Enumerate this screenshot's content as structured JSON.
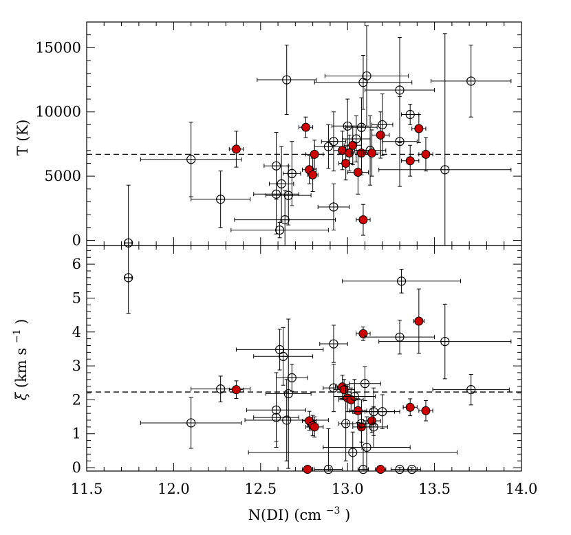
{
  "chart_data": {
    "type": "scatter",
    "x": {
      "label_main": "N(DI)",
      "label_units": "(cm",
      "label_exp": "−3",
      "label_close": ")",
      "range": [
        11.5,
        14.0
      ],
      "ticks": [
        "11.5",
        "12.0",
        "12.5",
        "13.0",
        "13.5",
        "14.0"
      ],
      "tick_values": [
        11.5,
        12.0,
        12.5,
        13.0,
        13.5,
        14.0
      ]
    },
    "panels": [
      {
        "id": "top",
        "ylabel": "T (K)",
        "ylim": [
          -400,
          17000
        ],
        "yticks": [
          "0",
          "5000",
          "10000",
          "15000"
        ],
        "ytick_values": [
          0,
          5000,
          10000,
          15000
        ],
        "reference_line": 6700,
        "points": [
          {
            "x": 11.74,
            "y": -200,
            "xerr": 0.02,
            "yerr": 4500,
            "filled": false
          },
          {
            "x": 12.1,
            "y": 6300,
            "xerr": 0.29,
            "yerr": 2900,
            "filled": false
          },
          {
            "x": 12.27,
            "y": 3200,
            "xerr": 0.17,
            "yerr": 2200,
            "filled": false
          },
          {
            "x": 12.36,
            "y": 7100,
            "xerr": 0.04,
            "yerr": 1400,
            "filled": true
          },
          {
            "x": 12.59,
            "y": 5800,
            "xerr": 0.07,
            "yerr": 2600,
            "filled": false
          },
          {
            "x": 12.59,
            "y": 3600,
            "xerr": 0.13,
            "yerr": 3100,
            "filled": false
          },
          {
            "x": 12.61,
            "y": 800,
            "xerr": 0.28,
            "yerr": 600,
            "filled": false
          },
          {
            "x": 12.62,
            "y": 4400,
            "xerr": 0.07,
            "yerr": 2900,
            "filled": false
          },
          {
            "x": 12.64,
            "y": 1600,
            "xerr": 0.29,
            "yerr": 2300,
            "filled": false
          },
          {
            "x": 12.65,
            "y": 12500,
            "xerr": 0.17,
            "yerr": 2700,
            "filled": false
          },
          {
            "x": 12.66,
            "y": 3500,
            "xerr": 0.13,
            "yerr": 2300,
            "filled": false
          },
          {
            "x": 12.68,
            "y": 5200,
            "xerr": 0.05,
            "yerr": 2500,
            "filled": false
          },
          {
            "x": 12.76,
            "y": 8800,
            "xerr": 0.04,
            "yerr": 800,
            "filled": true
          },
          {
            "x": 12.78,
            "y": 5500,
            "xerr": 0.04,
            "yerr": 1100,
            "filled": true
          },
          {
            "x": 12.8,
            "y": 5100,
            "xerr": 0.03,
            "yerr": 1300,
            "filled": true
          },
          {
            "x": 12.81,
            "y": 6700,
            "xerr": 0.05,
            "yerr": 1100,
            "filled": true
          },
          {
            "x": 12.89,
            "y": 7300,
            "xerr": 0.08,
            "yerr": 1700,
            "filled": false
          },
          {
            "x": 12.92,
            "y": 2600,
            "xerr": 0.09,
            "yerr": 1800,
            "filled": false
          },
          {
            "x": 12.92,
            "y": 7700,
            "xerr": 0.07,
            "yerr": 2300,
            "filled": false
          },
          {
            "x": 12.97,
            "y": 7000,
            "xerr": 0.05,
            "yerr": 1500,
            "filled": true
          },
          {
            "x": 12.99,
            "y": 6000,
            "xerr": 0.04,
            "yerr": 1300,
            "filled": true
          },
          {
            "x": 13.0,
            "y": 8900,
            "xerr": 0.09,
            "yerr": 2100,
            "filled": false
          },
          {
            "x": 13.01,
            "y": 6800,
            "xerr": 0.06,
            "yerr": 1400,
            "filled": true
          },
          {
            "x": 13.03,
            "y": 7400,
            "xerr": 0.05,
            "yerr": 1500,
            "filled": true
          },
          {
            "x": 13.05,
            "y": 7900,
            "xerr": 0.08,
            "yerr": 1800,
            "filled": false
          },
          {
            "x": 13.06,
            "y": 5300,
            "xerr": 0.06,
            "yerr": 1700,
            "filled": true
          },
          {
            "x": 13.08,
            "y": 6800,
            "xerr": 0.06,
            "yerr": 1700,
            "filled": true
          },
          {
            "x": 13.08,
            "y": 8800,
            "xerr": 0.09,
            "yerr": 2300,
            "filled": false
          },
          {
            "x": 13.09,
            "y": 12300,
            "xerr": 0.28,
            "yerr": 2100,
            "filled": false
          },
          {
            "x": 13.09,
            "y": 1600,
            "xerr": 0.04,
            "yerr": 1200,
            "filled": true
          },
          {
            "x": 13.11,
            "y": 12800,
            "xerr": 0.24,
            "yerr": 3900,
            "filled": false
          },
          {
            "x": 13.13,
            "y": 7000,
            "xerr": 0.09,
            "yerr": 2700,
            "filled": false
          },
          {
            "x": 13.14,
            "y": 6800,
            "xerr": 0.05,
            "yerr": 1800,
            "filled": true
          },
          {
            "x": 13.19,
            "y": 8200,
            "xerr": 0.05,
            "yerr": 1800,
            "filled": true
          },
          {
            "x": 13.2,
            "y": 9000,
            "xerr": 0.06,
            "yerr": 2400,
            "filled": false
          },
          {
            "x": 13.3,
            "y": 11700,
            "xerr": 0.2,
            "yerr": 4100,
            "filled": false
          },
          {
            "x": 13.3,
            "y": 7700,
            "xerr": 0.1,
            "yerr": 3500,
            "filled": false
          },
          {
            "x": 13.36,
            "y": 6200,
            "xerr": 0.05,
            "yerr": 1200,
            "filled": true
          },
          {
            "x": 13.36,
            "y": 9800,
            "xerr": 0.05,
            "yerr": 800,
            "filled": false
          },
          {
            "x": 13.41,
            "y": 8700,
            "xerr": 0.04,
            "yerr": 1100,
            "filled": true
          },
          {
            "x": 13.45,
            "y": 6700,
            "xerr": 0.04,
            "yerr": 1300,
            "filled": true
          },
          {
            "x": 13.56,
            "y": 5500,
            "xerr": 0.38,
            "yerr": 10600,
            "filled": false
          },
          {
            "x": 13.71,
            "y": 12400,
            "xerr": 0.23,
            "yerr": 2800,
            "filled": false
          }
        ]
      },
      {
        "id": "bottom",
        "ylabel_symbol": "ξ",
        "ylabel_units": "(km s",
        "ylabel_exp": "−1",
        "ylabel_close": ")",
        "ylim": [
          -0.1,
          6.55
        ],
        "yticks": [
          "0",
          "1",
          "2",
          "3",
          "4",
          "5",
          "6"
        ],
        "ytick_values": [
          0,
          1,
          2,
          3,
          4,
          5,
          6
        ],
        "reference_line": 2.23,
        "points": [
          {
            "x": 11.74,
            "y": 5.6,
            "xerr": 0.02,
            "yerr": 1.05,
            "filled": false
          },
          {
            "x": 12.1,
            "y": 1.32,
            "xerr": 0.29,
            "yerr": 0.75,
            "filled": false
          },
          {
            "x": 12.27,
            "y": 2.32,
            "xerr": 0.17,
            "yerr": 0.38,
            "filled": false
          },
          {
            "x": 12.36,
            "y": 2.3,
            "xerr": 0.04,
            "yerr": 0.26,
            "filled": true
          },
          {
            "x": 12.59,
            "y": 1.7,
            "xerr": 0.17,
            "yerr": 1.1,
            "filled": false
          },
          {
            "x": 12.59,
            "y": 1.48,
            "xerr": 0.13,
            "yerr": 0.7,
            "filled": false
          },
          {
            "x": 12.61,
            "y": 3.48,
            "xerr": 0.25,
            "yerr": 0.6,
            "filled": false
          },
          {
            "x": 12.63,
            "y": 3.28,
            "xerr": 0.17,
            "yerr": 0.85,
            "filled": false
          },
          {
            "x": 12.65,
            "y": 1.4,
            "xerr": 0.24,
            "yerr": 1.2,
            "filled": false
          },
          {
            "x": 12.66,
            "y": 2.18,
            "xerr": 0.13,
            "yerr": 2.2,
            "filled": false
          },
          {
            "x": 12.68,
            "y": 2.65,
            "xerr": 0.09,
            "yerr": 0.4,
            "filled": false
          },
          {
            "x": 12.77,
            "y": -0.05,
            "xerr": 0.03,
            "yerr": 0.05,
            "filled": true
          },
          {
            "x": 12.78,
            "y": 1.38,
            "xerr": 0.04,
            "yerr": 0.28,
            "filled": true
          },
          {
            "x": 12.8,
            "y": 1.24,
            "xerr": 0.03,
            "yerr": 0.3,
            "filled": true
          },
          {
            "x": 12.81,
            "y": 1.2,
            "xerr": 0.05,
            "yerr": 0.3,
            "filled": true
          },
          {
            "x": 12.89,
            "y": -0.05,
            "xerr": 0.08,
            "yerr": 1.2,
            "filled": false
          },
          {
            "x": 12.92,
            "y": 3.65,
            "xerr": 0.08,
            "yerr": 0.55,
            "filled": false
          },
          {
            "x": 12.92,
            "y": 2.35,
            "xerr": 0.06,
            "yerr": 0.7,
            "filled": false
          },
          {
            "x": 12.97,
            "y": 2.38,
            "xerr": 0.04,
            "yerr": 0.35,
            "filled": true
          },
          {
            "x": 12.98,
            "y": 2.3,
            "xerr": 0.06,
            "yerr": 0.3,
            "filled": true
          },
          {
            "x": 12.99,
            "y": 1.3,
            "xerr": 0.04,
            "yerr": 1.1,
            "filled": false
          },
          {
            "x": 13.0,
            "y": 2.05,
            "xerr": 0.05,
            "yerr": 0.4,
            "filled": true
          },
          {
            "x": 13.02,
            "y": 2.0,
            "xerr": 0.07,
            "yerr": 0.35,
            "filled": true
          },
          {
            "x": 13.03,
            "y": 0.45,
            "xerr": 0.6,
            "yerr": 0.6,
            "filled": false
          },
          {
            "x": 13.04,
            "y": 2.1,
            "xerr": 0.12,
            "yerr": 0.5,
            "filled": false
          },
          {
            "x": 13.06,
            "y": 1.68,
            "xerr": 0.05,
            "yerr": 0.35,
            "filled": true
          },
          {
            "x": 13.08,
            "y": 1.2,
            "xerr": 0.05,
            "yerr": 0.45,
            "filled": true
          },
          {
            "x": 13.08,
            "y": 1.3,
            "xerr": 0.08,
            "yerr": 0.7,
            "filled": false
          },
          {
            "x": 13.09,
            "y": 3.95,
            "xerr": 0.04,
            "yerr": 0.2,
            "filled": true
          },
          {
            "x": 13.09,
            "y": -0.05,
            "xerr": 0.03,
            "yerr": 0.6,
            "filled": false
          },
          {
            "x": 13.1,
            "y": 2.48,
            "xerr": 0.09,
            "yerr": 0.5,
            "filled": false
          },
          {
            "x": 13.11,
            "y": 0.6,
            "xerr": 0.25,
            "yerr": 0.9,
            "filled": false
          },
          {
            "x": 13.14,
            "y": 1.38,
            "xerr": 0.05,
            "yerr": 0.35,
            "filled": true
          },
          {
            "x": 13.15,
            "y": 1.65,
            "xerr": 0.12,
            "yerr": 0.7,
            "filled": false
          },
          {
            "x": 13.15,
            "y": 1.2,
            "xerr": 0.08,
            "yerr": 0.6,
            "filled": false
          },
          {
            "x": 13.19,
            "y": -0.05,
            "xerr": 0.03,
            "yerr": 0.05,
            "filled": true
          },
          {
            "x": 13.2,
            "y": 1.65,
            "xerr": 0.1,
            "yerr": 0.5,
            "filled": false
          },
          {
            "x": 13.3,
            "y": 3.85,
            "xerr": 0.2,
            "yerr": 0.5,
            "filled": false
          },
          {
            "x": 13.31,
            "y": 5.5,
            "xerr": 0.34,
            "yerr": 0.35,
            "filled": false
          },
          {
            "x": 13.3,
            "y": -0.05,
            "xerr": 0.05,
            "yerr": 0.05,
            "filled": false
          },
          {
            "x": 13.36,
            "y": 1.78,
            "xerr": 0.04,
            "yerr": 0.25,
            "filled": true
          },
          {
            "x": 13.37,
            "y": -0.05,
            "xerr": 0.05,
            "yerr": 0.05,
            "filled": false
          },
          {
            "x": 13.41,
            "y": 4.32,
            "xerr": 0.03,
            "yerr": 0.95,
            "filled": true
          },
          {
            "x": 13.45,
            "y": 1.68,
            "xerr": 0.04,
            "yerr": 0.3,
            "filled": true
          },
          {
            "x": 13.56,
            "y": 3.72,
            "xerr": 0.38,
            "yerr": 1.1,
            "filled": false
          },
          {
            "x": 13.71,
            "y": 2.3,
            "xerr": 0.22,
            "yerr": 0.45,
            "filled": false
          }
        ]
      }
    ]
  },
  "colors": {
    "filled_marker": "#cc0000",
    "ink": "#000000"
  }
}
